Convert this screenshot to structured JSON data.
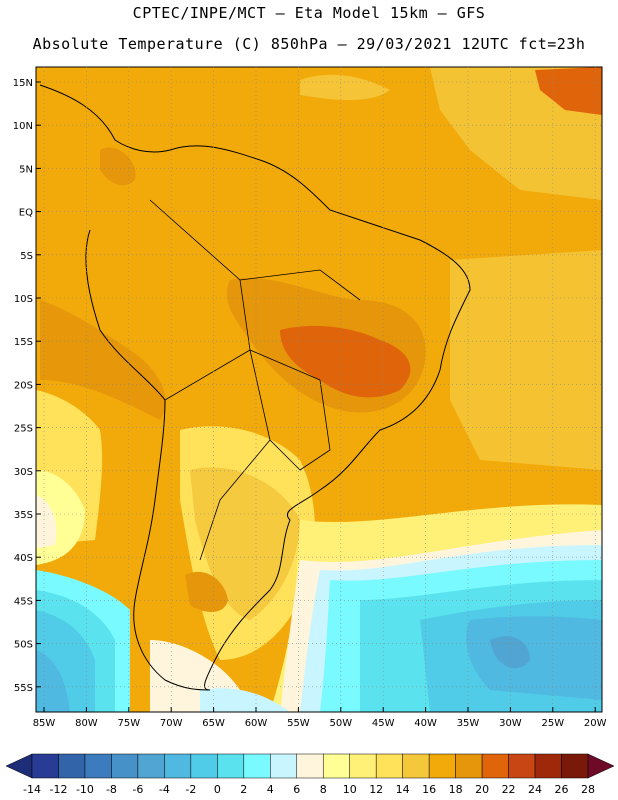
{
  "header": {
    "line1": "CPTEC/INPE/MCT –  Eta Model 15km – GFS",
    "line2": "Absolute Temperature (C) 850hPa – 29/03/2021 12UTC fct=23h"
  },
  "map": {
    "lat_labels": [
      "15N",
      "10N",
      "5N",
      "EQ",
      "5S",
      "10S",
      "15S",
      "20S",
      "25S",
      "30S",
      "35S",
      "40S",
      "45S",
      "50S",
      "55S"
    ],
    "lon_labels": [
      "85W",
      "80W",
      "75W",
      "70W",
      "65W",
      "60W",
      "55W",
      "50W",
      "45W",
      "40W",
      "35W",
      "30W",
      "25W",
      "20W"
    ],
    "background_color": "#f2aa0a",
    "border_color": "#000000"
  },
  "colorbar": {
    "labels": [
      "-14",
      "-12",
      "-10",
      "-8",
      "-6",
      "-4",
      "-2",
      "0",
      "2",
      "4",
      "6",
      "8",
      "10",
      "12",
      "14",
      "16",
      "18",
      "20",
      "22",
      "24",
      "26",
      "28"
    ],
    "colors": [
      "#283c96",
      "#3264aa",
      "#3c7bbe",
      "#4691c8",
      "#50a5d2",
      "#50b9e1",
      "#50cce8",
      "#5ae3ee",
      "#78faff",
      "#c8f5ff",
      "#fff5dc",
      "#ffff96",
      "#fff078",
      "#ffe15a",
      "#f5c83c",
      "#f2aa0a",
      "#e6960a",
      "#e0640a",
      "#c84614",
      "#a0280a",
      "#78190a"
    ],
    "low_arrow_color": "#1e2d78",
    "high_arrow_color": "#6e0a28"
  }
}
